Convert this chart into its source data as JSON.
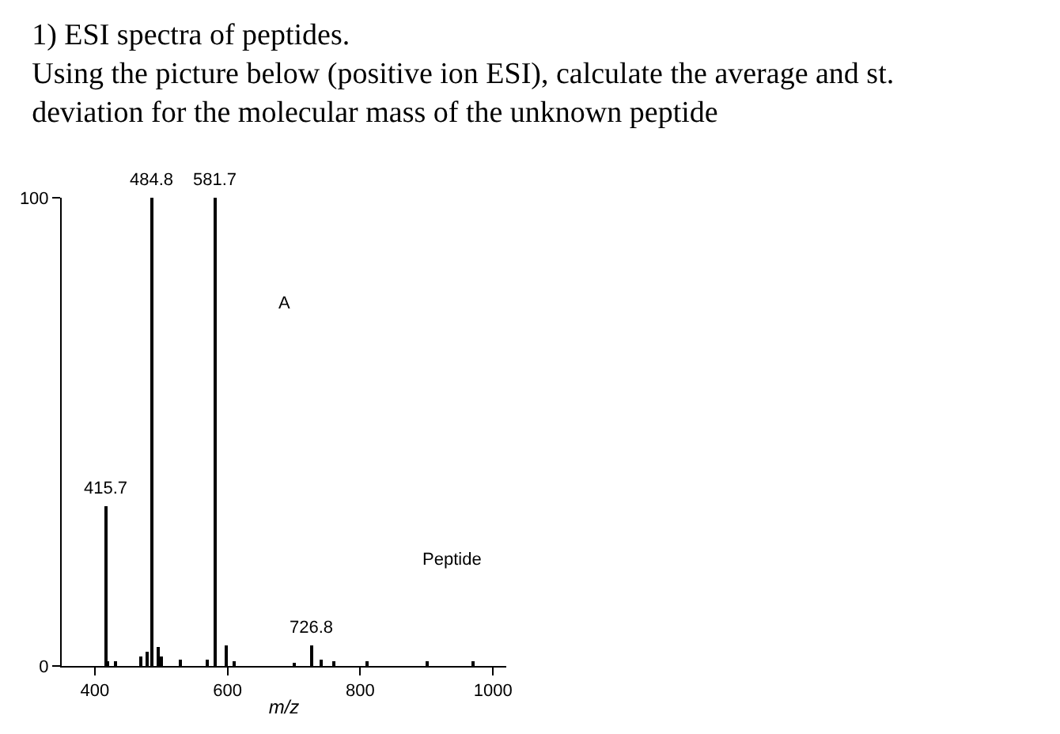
{
  "chart_data": {
    "type": "bar",
    "title": "1) ESI spectra of peptides.",
    "subtitle": "Using the picture below (positive ion ESI), calculate the average and st.\ndeviation for the molecular mass of the unknown peptide",
    "xlabel": "m/z",
    "x": [
      415.7,
      420,
      430,
      470,
      478,
      484.8,
      495,
      500,
      530,
      570,
      581.7,
      597,
      610,
      700,
      726.8,
      740,
      760,
      810,
      900,
      970
    ],
    "values": [
      34,
      1,
      1,
      2,
      3,
      100,
      4,
      2,
      1.5,
      1.5,
      100,
      4.5,
      1,
      0.8,
      4.3,
      1.5,
      1,
      1,
      1,
      1
    ],
    "color": "#000000",
    "xlim": [
      350,
      1020
    ],
    "xticks": [
      400,
      600,
      800,
      1000
    ],
    "ylim": [
      0,
      100
    ],
    "yticks": [
      0,
      100
    ],
    "annotations": [
      {
        "text": "415.7",
        "x": 415.7,
        "y": 34
      },
      {
        "text": "484.8",
        "x": 484.8,
        "y": 100
      },
      {
        "text": "581.7",
        "x": 581.7,
        "y": 100
      },
      {
        "text": "726.8",
        "x": 726.8,
        "y": 4.3
      },
      "A",
      "Peptide"
    ],
    "legend": false
  }
}
